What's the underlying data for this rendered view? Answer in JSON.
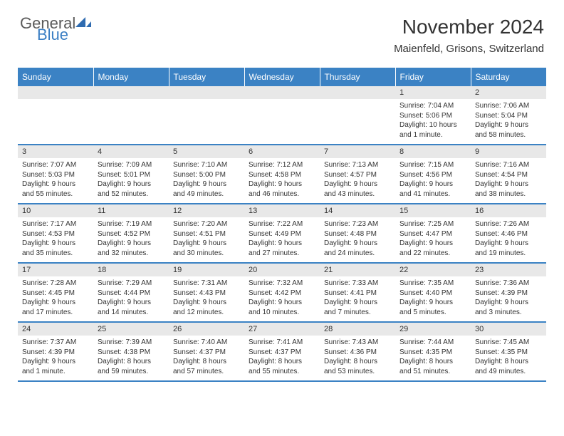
{
  "logo": {
    "text1": "General",
    "text2": "Blue",
    "icon_color": "#2e6bb0"
  },
  "title": "November 2024",
  "subtitle": "Maienfeld, Grisons, Switzerland",
  "colors": {
    "header_bg": "#3b82c4",
    "header_text": "#ffffff",
    "dayhead_bg": "#e8e8e8",
    "border": "#3b82c4",
    "text": "#333333",
    "background": "#ffffff"
  },
  "typography": {
    "title_fontsize": 28,
    "subtitle_fontsize": 15,
    "dayheader_fontsize": 12,
    "daynum_fontsize": 11,
    "body_fontsize": 10
  },
  "weekday_labels": [
    "Sunday",
    "Monday",
    "Tuesday",
    "Wednesday",
    "Thursday",
    "Friday",
    "Saturday"
  ],
  "weeks": [
    [
      null,
      null,
      null,
      null,
      null,
      {
        "n": "1",
        "sunrise": "Sunrise: 7:04 AM",
        "sunset": "Sunset: 5:06 PM",
        "daylight": "Daylight: 10 hours and 1 minute."
      },
      {
        "n": "2",
        "sunrise": "Sunrise: 7:06 AM",
        "sunset": "Sunset: 5:04 PM",
        "daylight": "Daylight: 9 hours and 58 minutes."
      }
    ],
    [
      {
        "n": "3",
        "sunrise": "Sunrise: 7:07 AM",
        "sunset": "Sunset: 5:03 PM",
        "daylight": "Daylight: 9 hours and 55 minutes."
      },
      {
        "n": "4",
        "sunrise": "Sunrise: 7:09 AM",
        "sunset": "Sunset: 5:01 PM",
        "daylight": "Daylight: 9 hours and 52 minutes."
      },
      {
        "n": "5",
        "sunrise": "Sunrise: 7:10 AM",
        "sunset": "Sunset: 5:00 PM",
        "daylight": "Daylight: 9 hours and 49 minutes."
      },
      {
        "n": "6",
        "sunrise": "Sunrise: 7:12 AM",
        "sunset": "Sunset: 4:58 PM",
        "daylight": "Daylight: 9 hours and 46 minutes."
      },
      {
        "n": "7",
        "sunrise": "Sunrise: 7:13 AM",
        "sunset": "Sunset: 4:57 PM",
        "daylight": "Daylight: 9 hours and 43 minutes."
      },
      {
        "n": "8",
        "sunrise": "Sunrise: 7:15 AM",
        "sunset": "Sunset: 4:56 PM",
        "daylight": "Daylight: 9 hours and 41 minutes."
      },
      {
        "n": "9",
        "sunrise": "Sunrise: 7:16 AM",
        "sunset": "Sunset: 4:54 PM",
        "daylight": "Daylight: 9 hours and 38 minutes."
      }
    ],
    [
      {
        "n": "10",
        "sunrise": "Sunrise: 7:17 AM",
        "sunset": "Sunset: 4:53 PM",
        "daylight": "Daylight: 9 hours and 35 minutes."
      },
      {
        "n": "11",
        "sunrise": "Sunrise: 7:19 AM",
        "sunset": "Sunset: 4:52 PM",
        "daylight": "Daylight: 9 hours and 32 minutes."
      },
      {
        "n": "12",
        "sunrise": "Sunrise: 7:20 AM",
        "sunset": "Sunset: 4:51 PM",
        "daylight": "Daylight: 9 hours and 30 minutes."
      },
      {
        "n": "13",
        "sunrise": "Sunrise: 7:22 AM",
        "sunset": "Sunset: 4:49 PM",
        "daylight": "Daylight: 9 hours and 27 minutes."
      },
      {
        "n": "14",
        "sunrise": "Sunrise: 7:23 AM",
        "sunset": "Sunset: 4:48 PM",
        "daylight": "Daylight: 9 hours and 24 minutes."
      },
      {
        "n": "15",
        "sunrise": "Sunrise: 7:25 AM",
        "sunset": "Sunset: 4:47 PM",
        "daylight": "Daylight: 9 hours and 22 minutes."
      },
      {
        "n": "16",
        "sunrise": "Sunrise: 7:26 AM",
        "sunset": "Sunset: 4:46 PM",
        "daylight": "Daylight: 9 hours and 19 minutes."
      }
    ],
    [
      {
        "n": "17",
        "sunrise": "Sunrise: 7:28 AM",
        "sunset": "Sunset: 4:45 PM",
        "daylight": "Daylight: 9 hours and 17 minutes."
      },
      {
        "n": "18",
        "sunrise": "Sunrise: 7:29 AM",
        "sunset": "Sunset: 4:44 PM",
        "daylight": "Daylight: 9 hours and 14 minutes."
      },
      {
        "n": "19",
        "sunrise": "Sunrise: 7:31 AM",
        "sunset": "Sunset: 4:43 PM",
        "daylight": "Daylight: 9 hours and 12 minutes."
      },
      {
        "n": "20",
        "sunrise": "Sunrise: 7:32 AM",
        "sunset": "Sunset: 4:42 PM",
        "daylight": "Daylight: 9 hours and 10 minutes."
      },
      {
        "n": "21",
        "sunrise": "Sunrise: 7:33 AM",
        "sunset": "Sunset: 4:41 PM",
        "daylight": "Daylight: 9 hours and 7 minutes."
      },
      {
        "n": "22",
        "sunrise": "Sunrise: 7:35 AM",
        "sunset": "Sunset: 4:40 PM",
        "daylight": "Daylight: 9 hours and 5 minutes."
      },
      {
        "n": "23",
        "sunrise": "Sunrise: 7:36 AM",
        "sunset": "Sunset: 4:39 PM",
        "daylight": "Daylight: 9 hours and 3 minutes."
      }
    ],
    [
      {
        "n": "24",
        "sunrise": "Sunrise: 7:37 AM",
        "sunset": "Sunset: 4:39 PM",
        "daylight": "Daylight: 9 hours and 1 minute."
      },
      {
        "n": "25",
        "sunrise": "Sunrise: 7:39 AM",
        "sunset": "Sunset: 4:38 PM",
        "daylight": "Daylight: 8 hours and 59 minutes."
      },
      {
        "n": "26",
        "sunrise": "Sunrise: 7:40 AM",
        "sunset": "Sunset: 4:37 PM",
        "daylight": "Daylight: 8 hours and 57 minutes."
      },
      {
        "n": "27",
        "sunrise": "Sunrise: 7:41 AM",
        "sunset": "Sunset: 4:37 PM",
        "daylight": "Daylight: 8 hours and 55 minutes."
      },
      {
        "n": "28",
        "sunrise": "Sunrise: 7:43 AM",
        "sunset": "Sunset: 4:36 PM",
        "daylight": "Daylight: 8 hours and 53 minutes."
      },
      {
        "n": "29",
        "sunrise": "Sunrise: 7:44 AM",
        "sunset": "Sunset: 4:35 PM",
        "daylight": "Daylight: 8 hours and 51 minutes."
      },
      {
        "n": "30",
        "sunrise": "Sunrise: 7:45 AM",
        "sunset": "Sunset: 4:35 PM",
        "daylight": "Daylight: 8 hours and 49 minutes."
      }
    ]
  ]
}
